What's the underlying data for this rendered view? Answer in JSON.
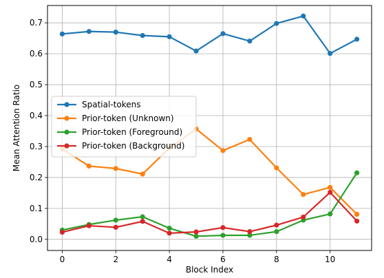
{
  "chart_data": {
    "type": "line",
    "title": "",
    "xlabel": "Block Index",
    "ylabel": "Mean Attention Ratio",
    "xlim": [
      -0.55,
      11.55
    ],
    "ylim": [
      -0.036,
      0.756
    ],
    "xticks": [
      0,
      2,
      4,
      6,
      8,
      10
    ],
    "yticks": [
      0.0,
      0.1,
      0.2,
      0.3,
      0.4,
      0.5,
      0.6,
      0.7
    ],
    "xtick_labels": [
      "0",
      "2",
      "4",
      "6",
      "8",
      "10"
    ],
    "ytick_labels": [
      "0.0",
      "0.1",
      "0.2",
      "0.3",
      "0.4",
      "0.5",
      "0.6",
      "0.7"
    ],
    "grid": true,
    "legend_position": "center-left",
    "x": [
      0,
      1,
      2,
      3,
      4,
      5,
      6,
      7,
      8,
      9,
      10,
      11
    ],
    "series": [
      {
        "name": "Spatial-tokens",
        "color": "#1f77b4",
        "values": [
          0.664,
          0.672,
          0.67,
          0.659,
          0.655,
          0.609,
          0.665,
          0.641,
          0.698,
          0.722,
          0.601,
          0.647
        ]
      },
      {
        "name": "Prior-token (Unknown)",
        "color": "#ff7f0e",
        "values": [
          0.292,
          0.237,
          0.229,
          0.211,
          0.295,
          0.357,
          0.287,
          0.323,
          0.231,
          0.145,
          0.168,
          0.081
        ]
      },
      {
        "name": "Prior-token (Foreground)",
        "color": "#2ca02c",
        "values": [
          0.03,
          0.048,
          0.062,
          0.073,
          0.036,
          0.01,
          0.013,
          0.013,
          0.025,
          0.062,
          0.082,
          0.215
        ]
      },
      {
        "name": "Prior-token (Background)",
        "color": "#d62728",
        "values": [
          0.023,
          0.044,
          0.039,
          0.058,
          0.02,
          0.024,
          0.038,
          0.025,
          0.046,
          0.072,
          0.152,
          0.059
        ]
      }
    ]
  }
}
